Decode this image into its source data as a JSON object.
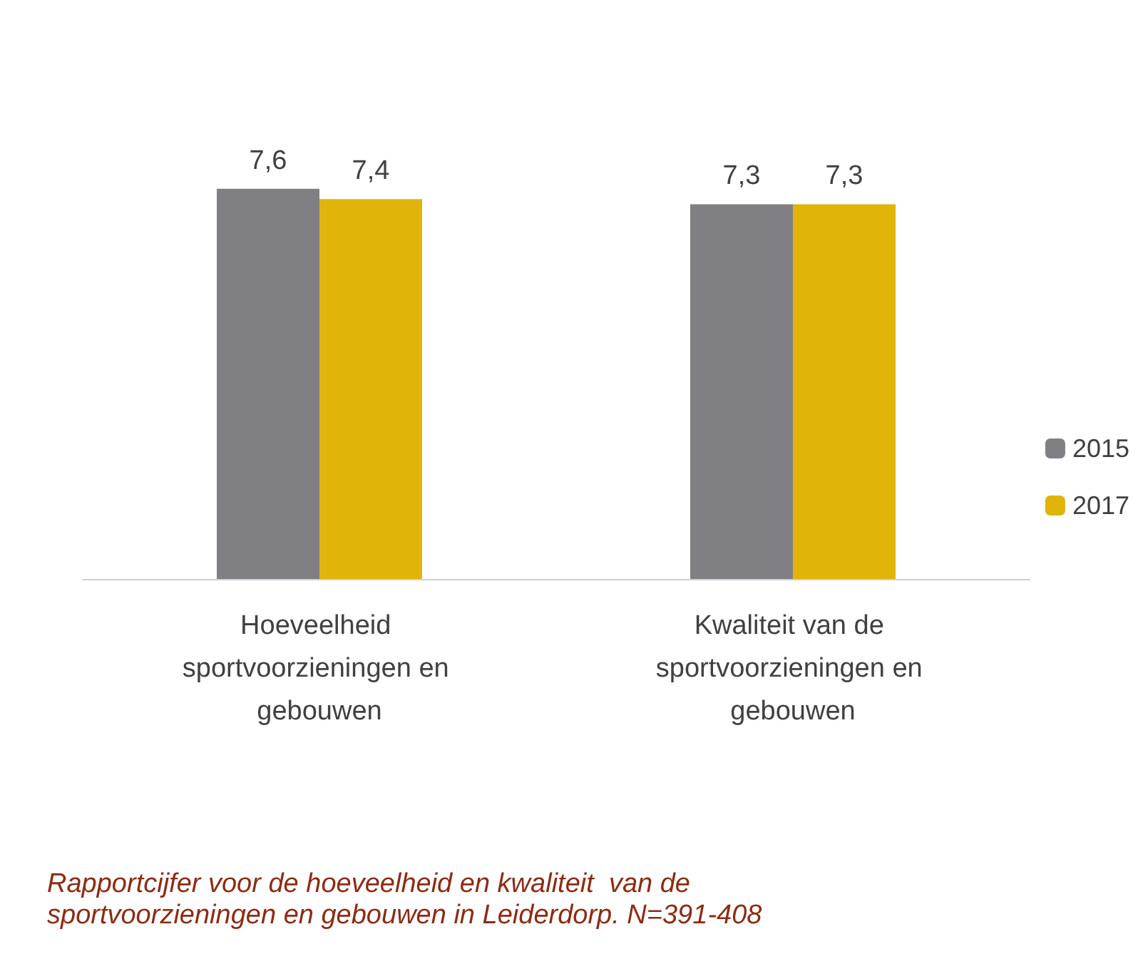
{
  "chart_data": {
    "type": "bar",
    "categories": [
      "Hoeveelheid sportvoorzieningen en gebouwen",
      "Kwaliteit van de sportvoorzieningen en gebouwen"
    ],
    "series": [
      {
        "name": "2015",
        "color": "#808084",
        "values": [
          7.6,
          7.3
        ],
        "value_labels": [
          "7,6",
          "7,3"
        ]
      },
      {
        "name": "2017",
        "color": "#e0b408",
        "values": [
          7.4,
          7.3
        ],
        "value_labels": [
          "7,4",
          "7,3"
        ]
      }
    ],
    "legend": "right",
    "grid": false,
    "annotations": [
      "Rapportcijfer voor de hoeveelheid en kwaliteit  van de sportvoorzieningen en gebouwen in Leiderdorp. N=391-408"
    ]
  }
}
